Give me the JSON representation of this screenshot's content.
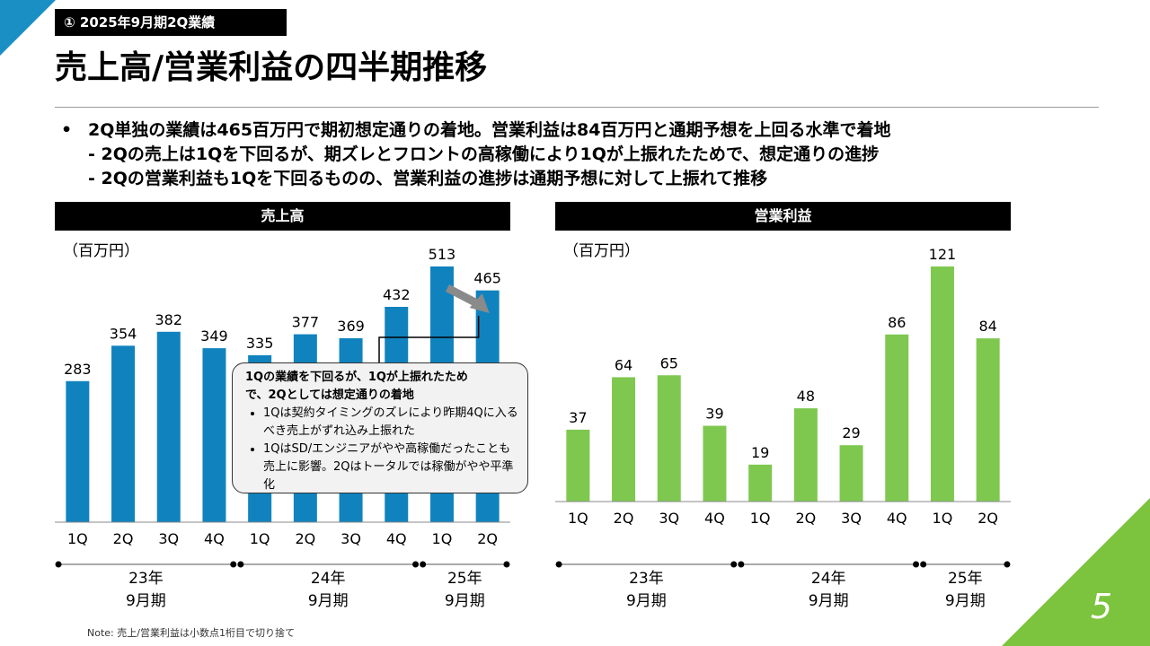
{
  "section_tag": "① 2025年9月期2Q業績",
  "page_title": "売上高/営業利益の四半期推移",
  "bullets": {
    "main": "2Q単独の業績は465百万円で期初想定通りの着地。営業利益は84百万円と通期予想を上回る水準で着地",
    "sub1": "- 2Qの売上は1Qを下回るが、期ズレとフロントの高稼働により1Qが上振れたためで、想定通りの進捗",
    "sub2": "- 2Qの営業利益も1Qを下回るものの、営業利益の進捗は通期予想に対して上振れて推移"
  },
  "callout": {
    "head1": "1Qの業績を下回るが、1Qが上振れたため",
    "head2": "で、2Qとしては想定通りの着地",
    "item1": "1Qは契約タイミングのズレにより昨期4Qに入るべき売上がずれ込み上振れた",
    "item2": "1QはSD/エンジニアがやや高稼働だったことも売上に影響。2Qはトータルでは稼働がやや平準化"
  },
  "page_number": "5",
  "note": "Note: 売上/営業利益は小数点1桁目で切り捨て",
  "colors": {
    "sales_bar": "#1083be",
    "profit_bar": "#7ec850",
    "accent_blue": "#1a8fc4",
    "accent_green": "#7cc33e",
    "arrow": "#8a8a8a"
  },
  "chart_data": [
    {
      "type": "bar",
      "title": "売上高",
      "unit": "（百万円）",
      "categories": [
        "1Q",
        "2Q",
        "3Q",
        "4Q",
        "1Q",
        "2Q",
        "3Q",
        "4Q",
        "1Q",
        "2Q"
      ],
      "values": [
        283,
        354,
        382,
        349,
        335,
        377,
        369,
        432,
        513,
        465
      ],
      "groups": [
        {
          "line1": "23年",
          "line2": "9月期",
          "count": 4
        },
        {
          "line1": "24年",
          "line2": "9月期",
          "count": 4
        },
        {
          "line1": "25年",
          "line2": "9月期",
          "count": 2
        }
      ]
    },
    {
      "type": "bar",
      "title": "営業利益",
      "unit": "（百万円）",
      "categories": [
        "1Q",
        "2Q",
        "3Q",
        "4Q",
        "1Q",
        "2Q",
        "3Q",
        "4Q",
        "1Q",
        "2Q"
      ],
      "values": [
        37,
        64,
        65,
        39,
        19,
        48,
        29,
        86,
        121,
        84
      ],
      "groups": [
        {
          "line1": "23年",
          "line2": "9月期",
          "count": 4
        },
        {
          "line1": "24年",
          "line2": "9月期",
          "count": 4
        },
        {
          "line1": "25年",
          "line2": "9月期",
          "count": 2
        }
      ]
    }
  ]
}
